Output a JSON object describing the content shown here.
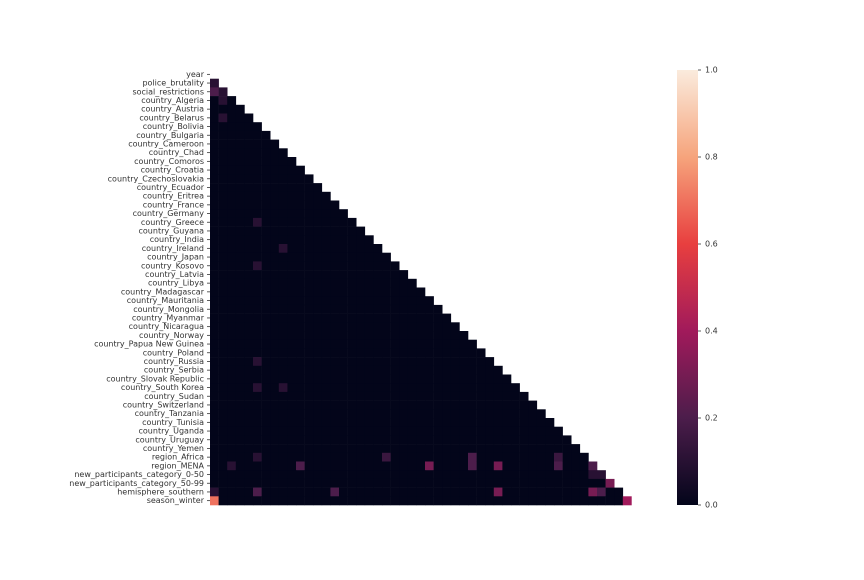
{
  "chart_data": {
    "type": "heatmap",
    "rows": [
      "year",
      "police_brutality",
      "social_restrictions",
      "country_Algeria",
      "country_Austria",
      "country_Belarus",
      "country_Bolivia",
      "country_Bulgaria",
      "country_Cameroon",
      "country_Chad",
      "country_Comoros",
      "country_Croatia",
      "country_Czechoslovakia",
      "country_Ecuador",
      "country_Eritrea",
      "country_France",
      "country_Germany",
      "country_Greece",
      "country_Guyana",
      "country_India",
      "country_Ireland",
      "country_Japan",
      "country_Kosovo",
      "country_Latvia",
      "country_Libya",
      "country_Madagascar",
      "country_Mauritania",
      "country_Mongolia",
      "country_Myanmar",
      "country_Nicaragua",
      "country_Norway",
      "country_Papua New Guinea",
      "country_Poland",
      "country_Russia",
      "country_Serbia",
      "country_Slovak Republic",
      "country_South Korea",
      "country_Sudan",
      "country_Switzerland",
      "country_Tanzania",
      "country_Tunisia",
      "country_Uganda",
      "country_Uruguay",
      "country_Yemen",
      "region_Africa",
      "region_MENA",
      "new_participants_category_0-50",
      "new_participants_category_50-99",
      "hemisphere_southern",
      "season_winter"
    ],
    "matrix": [
      [],
      [
        0.1
      ],
      [
        0.2,
        0.1
      ],
      [
        0,
        0.1,
        0
      ],
      [
        0,
        0,
        0,
        0
      ],
      [
        0,
        0.1,
        0,
        0,
        0
      ],
      [
        0,
        0,
        0,
        0,
        0,
        0
      ],
      [
        0,
        0,
        0,
        0,
        0,
        0,
        0
      ],
      [
        0,
        0,
        0,
        0,
        0,
        0,
        0,
        0
      ],
      [
        0,
        0,
        0,
        0,
        0,
        0,
        0,
        0,
        0
      ],
      [
        0,
        0,
        0,
        0,
        0,
        0,
        0,
        0,
        0,
        0
      ],
      [
        0,
        0,
        0,
        0,
        0,
        0,
        0,
        0,
        0,
        0,
        0
      ],
      [
        0,
        0,
        0,
        0,
        0,
        0,
        0,
        0,
        0,
        0,
        0,
        0
      ],
      [
        0,
        0,
        0,
        0,
        0,
        0,
        0,
        0,
        0,
        0,
        0,
        0,
        0
      ],
      [
        0,
        0,
        0,
        0,
        0,
        0,
        0,
        0,
        0,
        0,
        0,
        0,
        0,
        0
      ],
      [
        0,
        0,
        0,
        0,
        0,
        0,
        0,
        0,
        0,
        0,
        0,
        0,
        0,
        0,
        0
      ],
      [
        0,
        0,
        0,
        0,
        0,
        0,
        0,
        0,
        0,
        0,
        0,
        0,
        0,
        0,
        0,
        0
      ],
      [
        0,
        0,
        0,
        0,
        0,
        0.1,
        0,
        0,
        0,
        0,
        0,
        0,
        0,
        0,
        0,
        0,
        0
      ],
      [
        0,
        0,
        0,
        0,
        0,
        0,
        0,
        0,
        0,
        0,
        0,
        0,
        0,
        0,
        0,
        0,
        0,
        0
      ],
      [
        0,
        0,
        0,
        0,
        0,
        0,
        0,
        0,
        0,
        0,
        0,
        0,
        0,
        0,
        0,
        0,
        0,
        0,
        0
      ],
      [
        0,
        0,
        0,
        0,
        0,
        0,
        0,
        0,
        0.1,
        0,
        0,
        0,
        0,
        0,
        0,
        0,
        0,
        0,
        0,
        0
      ],
      [
        0,
        0,
        0,
        0,
        0,
        0,
        0,
        0,
        0,
        0,
        0,
        0,
        0,
        0,
        0,
        0,
        0,
        0,
        0,
        0,
        0
      ],
      [
        0,
        0,
        0,
        0,
        0,
        0.1,
        0,
        0,
        0,
        0,
        0,
        0,
        0,
        0,
        0,
        0,
        0,
        0,
        0,
        0,
        0,
        0
      ],
      [
        0,
        0,
        0,
        0,
        0,
        0,
        0,
        0,
        0,
        0,
        0,
        0,
        0,
        0,
        0,
        0,
        0,
        0,
        0,
        0,
        0,
        0,
        0
      ],
      [
        0,
        0,
        0,
        0,
        0,
        0,
        0,
        0,
        0,
        0,
        0,
        0,
        0,
        0,
        0,
        0,
        0,
        0,
        0,
        0,
        0,
        0,
        0,
        0
      ],
      [
        0,
        0,
        0,
        0,
        0,
        0,
        0,
        0,
        0,
        0,
        0,
        0,
        0,
        0,
        0,
        0,
        0,
        0,
        0,
        0,
        0,
        0,
        0,
        0,
        0
      ],
      [
        0,
        0,
        0,
        0,
        0,
        0,
        0,
        0,
        0,
        0,
        0,
        0,
        0,
        0,
        0,
        0,
        0,
        0,
        0,
        0,
        0,
        0,
        0,
        0,
        0,
        0
      ],
      [
        0,
        0,
        0,
        0,
        0,
        0,
        0,
        0,
        0,
        0,
        0,
        0,
        0,
        0,
        0,
        0,
        0,
        0,
        0,
        0,
        0,
        0,
        0,
        0,
        0,
        0,
        0
      ],
      [
        0,
        0,
        0,
        0,
        0,
        0,
        0,
        0,
        0,
        0,
        0,
        0,
        0,
        0,
        0,
        0,
        0,
        0,
        0,
        0,
        0,
        0,
        0,
        0,
        0,
        0,
        0,
        0
      ],
      [
        0,
        0,
        0,
        0,
        0,
        0,
        0,
        0,
        0,
        0,
        0,
        0,
        0,
        0,
        0,
        0,
        0,
        0,
        0,
        0,
        0,
        0,
        0,
        0,
        0,
        0,
        0,
        0,
        0
      ],
      [
        0,
        0,
        0,
        0,
        0,
        0,
        0,
        0,
        0,
        0,
        0,
        0,
        0,
        0,
        0,
        0,
        0,
        0,
        0,
        0,
        0,
        0,
        0,
        0,
        0,
        0,
        0,
        0,
        0,
        0
      ],
      [
        0,
        0,
        0,
        0,
        0,
        0,
        0,
        0,
        0,
        0,
        0,
        0,
        0,
        0,
        0,
        0,
        0,
        0,
        0,
        0,
        0,
        0,
        0,
        0,
        0,
        0,
        0,
        0,
        0,
        0,
        0
      ],
      [
        0,
        0,
        0,
        0,
        0,
        0,
        0,
        0,
        0,
        0,
        0,
        0,
        0,
        0,
        0,
        0,
        0,
        0,
        0,
        0,
        0,
        0,
        0,
        0,
        0,
        0,
        0,
        0,
        0,
        0,
        0,
        0
      ],
      [
        0,
        0,
        0,
        0,
        0,
        0.1,
        0,
        0,
        0,
        0,
        0,
        0,
        0,
        0,
        0,
        0,
        0,
        0,
        0,
        0,
        0,
        0,
        0,
        0,
        0,
        0,
        0,
        0,
        0,
        0,
        0,
        0,
        0
      ],
      [
        0,
        0,
        0,
        0,
        0,
        0,
        0,
        0,
        0,
        0,
        0,
        0,
        0,
        0,
        0,
        0,
        0,
        0,
        0,
        0,
        0,
        0,
        0,
        0,
        0,
        0,
        0,
        0,
        0,
        0,
        0,
        0,
        0,
        0
      ],
      [
        0,
        0,
        0,
        0,
        0,
        0,
        0,
        0,
        0,
        0,
        0,
        0,
        0,
        0,
        0,
        0,
        0,
        0,
        0,
        0,
        0,
        0,
        0,
        0,
        0,
        0,
        0,
        0,
        0,
        0,
        0,
        0,
        0,
        0,
        0
      ],
      [
        0,
        0,
        0,
        0,
        0,
        0.1,
        0,
        0,
        0.1,
        0,
        0,
        0,
        0,
        0,
        0,
        0,
        0,
        0,
        0,
        0,
        0,
        0,
        0,
        0,
        0,
        0,
        0,
        0,
        0,
        0,
        0,
        0,
        0,
        0,
        0,
        0
      ],
      [
        0,
        0,
        0,
        0,
        0,
        0,
        0,
        0,
        0,
        0,
        0,
        0,
        0,
        0,
        0,
        0,
        0,
        0,
        0,
        0,
        0,
        0,
        0,
        0,
        0,
        0,
        0,
        0,
        0,
        0,
        0,
        0,
        0,
        0,
        0,
        0,
        0
      ],
      [
        0,
        0,
        0,
        0,
        0,
        0,
        0,
        0,
        0,
        0,
        0,
        0,
        0,
        0,
        0,
        0,
        0,
        0,
        0,
        0,
        0,
        0,
        0,
        0,
        0,
        0,
        0,
        0,
        0,
        0,
        0,
        0,
        0,
        0,
        0,
        0,
        0,
        0
      ],
      [
        0,
        0,
        0,
        0,
        0,
        0,
        0,
        0,
        0,
        0,
        0,
        0,
        0,
        0,
        0,
        0,
        0,
        0,
        0,
        0,
        0,
        0,
        0,
        0,
        0,
        0,
        0,
        0,
        0,
        0,
        0,
        0,
        0,
        0,
        0,
        0,
        0,
        0,
        0
      ],
      [
        0,
        0,
        0,
        0,
        0,
        0,
        0,
        0,
        0,
        0,
        0,
        0,
        0,
        0,
        0,
        0,
        0,
        0,
        0,
        0,
        0,
        0,
        0,
        0,
        0,
        0,
        0,
        0,
        0,
        0,
        0,
        0,
        0,
        0,
        0,
        0,
        0,
        0,
        0,
        0
      ],
      [
        0,
        0,
        0,
        0,
        0,
        0,
        0,
        0,
        0,
        0,
        0,
        0,
        0,
        0,
        0,
        0,
        0,
        0,
        0,
        0,
        0,
        0,
        0,
        0,
        0,
        0,
        0,
        0,
        0,
        0,
        0,
        0,
        0,
        0,
        0,
        0,
        0,
        0,
        0,
        0,
        0
      ],
      [
        0,
        0,
        0,
        0,
        0,
        0,
        0,
        0,
        0,
        0,
        0,
        0,
        0,
        0,
        0,
        0,
        0,
        0,
        0,
        0,
        0,
        0,
        0,
        0,
        0,
        0,
        0,
        0,
        0,
        0,
        0,
        0,
        0,
        0,
        0,
        0,
        0,
        0,
        0,
        0,
        0,
        0
      ],
      [
        0,
        0,
        0,
        0,
        0,
        0,
        0,
        0,
        0,
        0,
        0,
        0,
        0,
        0,
        0,
        0,
        0,
        0,
        0,
        0,
        0,
        0,
        0,
        0,
        0,
        0,
        0,
        0,
        0,
        0,
        0,
        0,
        0,
        0,
        0,
        0,
        0,
        0,
        0,
        0,
        0,
        0,
        0
      ],
      [
        0,
        0,
        0,
        0,
        0,
        0.1,
        0,
        0,
        0,
        0,
        0,
        0,
        0,
        0,
        0,
        0,
        0,
        0,
        0,
        0,
        0.15,
        0,
        0,
        0,
        0,
        0,
        0,
        0,
        0,
        0,
        0.2,
        0,
        0,
        0,
        0,
        0,
        0,
        0,
        0,
        0,
        0.15,
        0,
        0,
        0
      ],
      [
        0,
        0,
        0.1,
        0,
        0,
        0,
        0,
        0,
        0,
        0,
        0.2,
        0,
        0,
        0,
        0,
        0,
        0,
        0,
        0,
        0,
        0,
        0,
        0,
        0,
        0,
        0.3,
        0,
        0,
        0,
        0,
        0.2,
        0,
        0,
        0.3,
        0,
        0,
        0,
        0,
        0,
        0,
        0.2,
        0,
        0,
        0,
        0.2
      ],
      [
        0,
        0,
        0,
        0,
        0,
        0,
        0,
        0,
        0,
        0,
        0,
        0,
        0,
        0,
        0,
        0,
        0,
        0,
        0,
        0,
        0,
        0,
        0,
        0,
        0,
        0,
        0,
        0,
        0,
        0,
        0,
        0,
        0,
        0,
        0,
        0,
        0,
        0,
        0,
        0,
        0,
        0,
        0,
        0,
        0.1,
        0.1
      ],
      [
        0,
        0,
        0,
        0,
        0,
        0,
        0,
        0,
        0,
        0,
        0,
        0,
        0,
        0,
        0,
        0,
        0,
        0,
        0,
        0,
        0,
        0,
        0,
        0,
        0,
        0,
        0,
        0,
        0,
        0,
        0,
        0,
        0,
        0,
        0,
        0,
        0,
        0,
        0,
        0,
        0,
        0,
        0,
        0,
        0,
        0,
        0.3
      ],
      [
        0.1,
        0,
        0,
        0,
        0,
        0.2,
        0,
        0,
        0,
        0,
        0,
        0,
        0,
        0,
        0.2,
        0,
        0,
        0,
        0,
        0,
        0,
        0,
        0,
        0,
        0,
        0,
        0,
        0,
        0,
        0,
        0,
        0,
        0,
        0.3,
        0,
        0,
        0,
        0,
        0,
        0,
        0,
        0,
        0,
        0,
        0.3,
        0.2,
        0,
        0
      ],
      [
        0.7,
        0,
        0,
        0,
        0,
        0,
        0,
        0,
        0,
        0,
        0,
        0,
        0,
        0,
        0,
        0,
        0,
        0,
        0,
        0,
        0,
        0,
        0,
        0,
        0,
        0,
        0,
        0,
        0,
        0,
        0,
        0,
        0,
        0,
        0,
        0,
        0,
        0,
        0,
        0,
        0,
        0,
        0,
        0,
        0,
        0,
        0,
        0,
        0.4
      ]
    ],
    "clim": [
      0,
      1
    ],
    "cticks": [
      {
        "value": 0,
        "label": "0.0"
      },
      {
        "value": 0.2,
        "label": "0.2"
      },
      {
        "value": 0.4,
        "label": "0.4"
      },
      {
        "value": 0.6,
        "label": "0.6"
      },
      {
        "value": 0.8,
        "label": "0.8"
      },
      {
        "value": 1,
        "label": "1.0"
      }
    ],
    "colormap": [
      "#03051a",
      "#4c1d4b",
      "#a11a5b",
      "#e83f3f",
      "#f6a47c",
      "#faebdd"
    ]
  }
}
